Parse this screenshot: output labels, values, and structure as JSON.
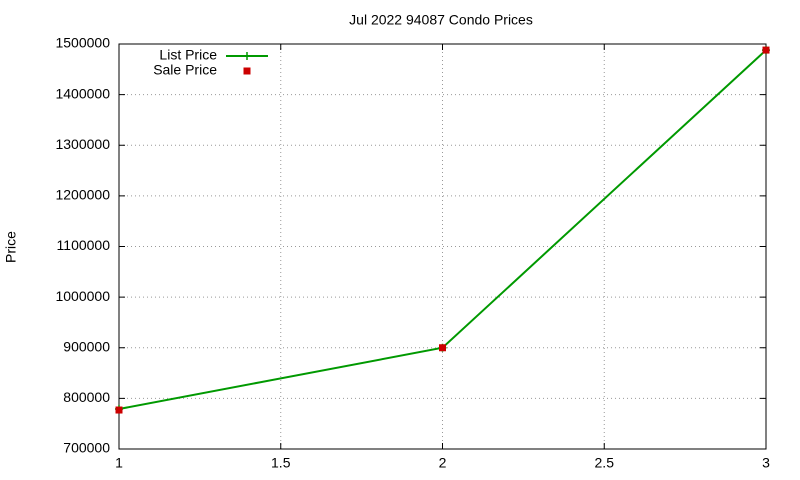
{
  "chart_data": {
    "type": "line",
    "title": "Jul 2022 94087 Condo Prices",
    "y_label": "Price",
    "x": [
      1,
      2,
      3
    ],
    "series": [
      {
        "name": "List Price",
        "type": "line",
        "color": "#009900",
        "values": [
          779000,
          900000,
          1488000
        ]
      },
      {
        "name": "Sale Price",
        "type": "scatter",
        "color": "#cc0000",
        "values": [
          777000,
          900000,
          1488000
        ]
      }
    ],
    "xlim": [
      1,
      3
    ],
    "xticks": [
      1,
      1.5,
      2,
      2.5,
      3
    ],
    "ylim": [
      700000,
      1500000
    ],
    "yticks": [
      700000,
      800000,
      900000,
      1000000,
      1100000,
      1200000,
      1300000,
      1400000,
      1500000
    ],
    "grid": true,
    "legend": "top-left"
  }
}
